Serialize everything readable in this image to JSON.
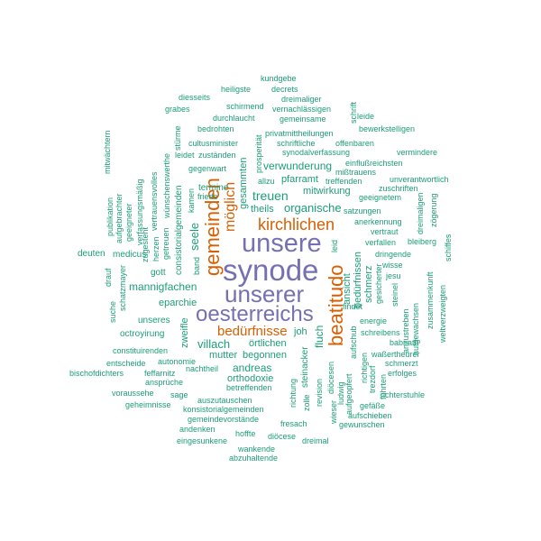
{
  "colors": {
    "teal": "#1b9e77",
    "orange": "#d95f02",
    "purple": "#7570b3"
  },
  "words": {
    "synode": "synode",
    "unsere": "unsere",
    "unserer": "unserer",
    "oesterreichs": "oesterreichs",
    "beatitudo": "beatitudo",
    "gemeinden": "gemeinden",
    "kirchlichen": "kirchlichen",
    "bedurfnisse": "bedürfnisse",
    "moglich": "möglich",
    "treuen": "treuen",
    "organische": "organische",
    "mannigfachen": "mannigfachen",
    "villach": "villach",
    "andreas": "andreas",
    "seele": "seele",
    "theils": "theils",
    "mitwirkung": "mitwirkung",
    "verwunderung": "verwunderung",
    "pfarramt": "pfarramt",
    "schrift": "schrift",
    "eparchie": "eparchie",
    "mutter": "mutter",
    "begonnen": "begonnen",
    "ortlichen": "örtlichen",
    "orthodoxie": "orthodoxie",
    "zweifle": "zweifle",
    "joh": "joh",
    "fluch": "fluch",
    "ansicht": "ansicht",
    "bedurfnissen": "bedürfnissen",
    "schmerz": "schmerz",
    "heiligste": "heiligste",
    "kundgebe": "kundgebe",
    "decrets": "decrets",
    "dreimaliger": "dreimaliger",
    "diesseits": "diesseits",
    "schirmend": "schirmend",
    "vernachlassigen": "vernachlässigen",
    "grabes": "grabes",
    "durchlaucht": "durchlaucht",
    "gemeinsame": "gemeinsame",
    "leide": "leide",
    "bedrohten": "bedrohten",
    "bewerkstelligen": "bewerkstelligen",
    "privatmittheilungen": "privatmittheilungen",
    "schriftliche": "schriftliche",
    "offenbaren": "offenbaren",
    "cultusminister": "cultusminister",
    "synodalverfassung": "synodalverfassung",
    "vermindere": "vermindere",
    "zustanden": "zuständen",
    "einflussreichsten": "einflußreichsten",
    "misstrauens": "mißtrauens",
    "gegenwart": "gegenwart",
    "allzu": "allzu",
    "treffenden": "treffenden",
    "unverantwortlich": "unverantwortlich",
    "zuschriften": "zuschriften",
    "termine": "termine",
    "satzungen": "satzungen",
    "friede": "friede",
    "geeignetem": "geeignetem",
    "dreimaligen": "dreimaligen",
    "zogerung": "zögerung",
    "anerkennung": "anerkennung",
    "vertraut": "vertraut",
    "verfallen": "verfallen",
    "bleiberg": "bleiberg",
    "schiffes": "schiffes",
    "deuten": "deuten",
    "medicus": "medicus",
    "dringende": "dringende",
    "wisse": "wisse",
    "gott": "gott",
    "jesu": "jesu",
    "zusammenkunft": "zusammenkunft",
    "findet": "findet",
    "energie": "energie",
    "unseres": "unseres",
    "octroyirung": "octroyirung",
    "schreibens": "schreibens",
    "babirath": "babirath",
    "constituirenden": "constituirenden",
    "bischofdichters": "bischofdichters",
    "waerthauer": "waßertheurer",
    "entscheide": "entscheide",
    "autonomie": "autonomie",
    "feffarnitz": "feffarnitz",
    "nachtheil": "nachtheil",
    "schmerzt": "schmerzt",
    "erfolges": "erfolges",
    "anspruche": "ansprüche",
    "voraussehe": "voraussehe",
    "sage": "sage",
    "richterstuhle": "richterstuhle",
    "geheimnisse": "geheimnisse",
    "auszutauschen": "auszutauschen",
    "konsistorialgemeinden": "konsistorialgemeinden",
    "betreffenden": "betreffenden",
    "gefasse": "gefäße",
    "aufschieben": "aufschieben",
    "gewunschen": "gewunschen",
    "gemeindevorstande": "gemeindevorstände",
    "fresach": "fresach",
    "andenken": "andenken",
    "hoffte": "hoffte",
    "eingesunkene": "eingesunkene",
    "diocese": "diöcese",
    "dreimal": "dreimal",
    "wankende": "wankende",
    "abzuhaltende": "abzuhaltende",
    "mitwachtern": "mitwächtern",
    "verfassungsmassig": "verfassungsmäßig",
    "vertrauensvolles": "vertrauensvolles",
    "wunschenswerthe": "wünschenswerthe",
    "sturme": "stürme",
    "leidet": "leidet",
    "prosperitat": "prosperität",
    "gesammten": "gesammten",
    "kamen": "kamen",
    "consistorialgemeinden": "consistorialgemeinden",
    "band": "band",
    "publikation": "publikation",
    "aufgebrachter": "aufgebrachter",
    "geeigneter": "geeigneter",
    "zugesteht": "zugesteht",
    "herzen": "herzen",
    "getreuen": "getreuen",
    "schatzmayer": "schatzmayer",
    "drauf": "drauf",
    "suche": "suche",
    "leid": "leid",
    "aufschub": "aufschub",
    "steinacker": "steinacker",
    "richtung": "richtung",
    "zolle": "zolle",
    "revision": "revision",
    "wieser": "wieser",
    "diocesen": "diöcesen",
    "ludwig": "ludwig",
    "aufgeopfert": "aufgeopfert",
    "gesicherter": "gesicherter",
    "trezdorf": "trezdorf",
    "anzustreben": "anzustreben",
    "aufgewachsen": "aufgewachsen",
    "steinel": "steinel",
    "weltverzweigten": "weltverzweigten",
    "fuhrten": "führten",
    "richtigen": "richtigen"
  }
}
